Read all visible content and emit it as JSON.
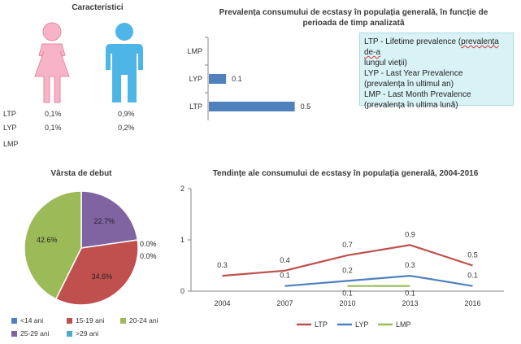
{
  "characteristics": {
    "title": "Caracteristici",
    "rows": [
      {
        "label": "LTP",
        "female": "0,1%",
        "male": "0,9%"
      },
      {
        "label": "LYP",
        "female": "0,1%",
        "male": "0,2%"
      },
      {
        "label": "LMP",
        "female": "",
        "male": ""
      }
    ],
    "colors": {
      "female": "#f7b4c8",
      "male": "#4eb6e6"
    },
    "icons": [
      "female-figure-icon",
      "male-figure-icon"
    ]
  },
  "prevalence": {
    "title_line1": "Prevalența consumului de ecstasy în populația generală, în funcție de",
    "title_line2": "perioada de timp analizată",
    "legend_lines": [
      "LTP - Lifetime prevalence (prevalența de-a",
      "lungul vieții)",
      "LYP - Last Year Prevalence",
      "(prevalența în ultimul an)",
      "LMP - Last Month Prevalence",
      "(prevalența în ultima lună)"
    ]
  },
  "chart_data": [
    {
      "type": "bar",
      "orientation": "horizontal",
      "categories": [
        "LMP",
        "LYP",
        "LTP"
      ],
      "values": [
        null,
        0.1,
        0.5
      ],
      "data_labels": [
        "",
        "0.1",
        "0.5"
      ],
      "color": "#4f81bd",
      "xlim": [
        0,
        1.2
      ]
    },
    {
      "type": "pie",
      "title": "Vârsta de debut",
      "labels": [
        "<14 ani",
        "15-19 ani",
        "20-24 ani",
        "25-29 ani",
        ">29 ani"
      ],
      "values": [
        0.0,
        34.6,
        42.6,
        22.7,
        0.0
      ],
      "data_labels": [
        "0.0%",
        "34.6%",
        "42.6%",
        "22.7%",
        "0.0%"
      ],
      "colors": [
        "#4f81bd",
        "#c0504d",
        "#9bbb59",
        "#8064a2",
        "#4bacc6"
      ],
      "legend": "bottom"
    },
    {
      "type": "line",
      "title": "Tendințe ale consumului de ecstasy în populația generală, 2004-2016",
      "x": [
        "2004",
        "2007",
        "2010",
        "2013",
        "2016"
      ],
      "series": [
        {
          "name": "LTP",
          "values": [
            0.3,
            0.4,
            0.7,
            0.9,
            0.5
          ],
          "color": "#c0504d"
        },
        {
          "name": "LYP",
          "values": [
            null,
            0.1,
            0.2,
            0.3,
            0.1
          ],
          "color": "#4f81bd"
        },
        {
          "name": "LMP",
          "values": [
            null,
            null,
            0.1,
            0.1,
            null
          ],
          "color": "#9bbb59"
        }
      ],
      "yticks": [
        "0",
        "1",
        "2"
      ],
      "ylim": [
        0,
        2
      ],
      "legend": "bottom"
    }
  ]
}
